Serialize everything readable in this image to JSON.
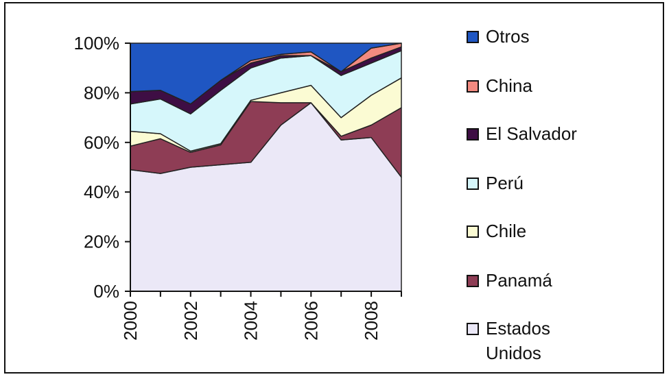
{
  "chart_data": {
    "type": "area",
    "stacked": true,
    "normalized": true,
    "x": [
      2000,
      2001,
      2002,
      2003,
      2004,
      2005,
      2006,
      2007,
      2008,
      2009
    ],
    "xtick_labels": [
      "2000",
      "2002",
      "2004",
      "2006",
      "2008"
    ],
    "ytick_labels": [
      "100%",
      "80%",
      "60%",
      "40%",
      "20%",
      "0%"
    ],
    "ylim": [
      0,
      100
    ],
    "grid": false,
    "legend_position": "right",
    "series": [
      {
        "name": "Estados Unidos",
        "color": "#ebe8f7",
        "values": [
          49,
          47.5,
          50,
          51,
          52,
          67,
          76,
          61,
          62,
          46
        ]
      },
      {
        "name": "Panamá",
        "color": "#8e3d55",
        "values": [
          9.5,
          14,
          6,
          8,
          24.5,
          9,
          0,
          1.5,
          5,
          28
        ]
      },
      {
        "name": "Chile",
        "color": "#fbfbd3",
        "values": [
          6,
          2,
          0.5,
          0.5,
          0.5,
          4,
          7,
          7.5,
          12,
          12
        ]
      },
      {
        "name": "Perú",
        "color": "#d6f7fb",
        "values": [
          11,
          14,
          15,
          21.5,
          13,
          14,
          12,
          17,
          13,
          11
        ]
      },
      {
        "name": "El Salvador",
        "color": "#3e0e44",
        "values": [
          5,
          3.5,
          4,
          4,
          2,
          1,
          0,
          1.5,
          2,
          1.5
        ]
      },
      {
        "name": "China",
        "color": "#f28a80",
        "values": [
          0,
          0,
          0,
          0,
          1,
          0.5,
          1.5,
          0,
          4,
          1.5
        ]
      },
      {
        "name": "Otros",
        "color": "#1f56c2",
        "values": [
          19.5,
          19,
          24.5,
          15,
          7,
          4.5,
          3.5,
          11.5,
          2,
          0
        ]
      }
    ]
  },
  "legend": {
    "items": [
      {
        "label": "Otros",
        "color": "#1f56c2"
      },
      {
        "label": "China",
        "color": "#f28a80"
      },
      {
        "label": "El Salvador",
        "color": "#3e0e44"
      },
      {
        "label": "Perú",
        "color": "#d6f7fb"
      },
      {
        "label": "Chile",
        "color": "#fbfbd3"
      },
      {
        "label": "Panamá",
        "color": "#8e3d55"
      },
      {
        "label": "Estados Unidos",
        "color": "#ebe8f7"
      }
    ]
  }
}
